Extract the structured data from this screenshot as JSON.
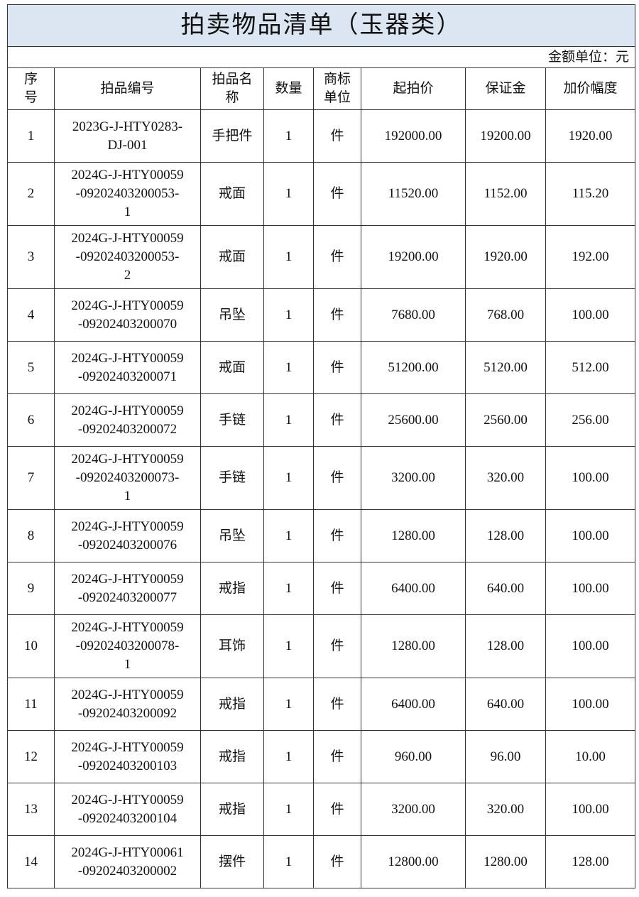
{
  "title": "拍卖物品清单（玉器类）",
  "unit_note": "金额单位：元",
  "columns": [
    "序\n号",
    "拍品编号",
    "拍品名\n称",
    "数量",
    "商标\n单位",
    "起拍价",
    "保证金",
    "加价幅度"
  ],
  "rows": [
    [
      "1",
      "2023G-J-HTY0283-\nDJ-001",
      "手把件",
      "1",
      "件",
      "192000.00",
      "19200.00",
      "1920.00"
    ],
    [
      "2",
      "2024G-J-HTY00059\n-09202403200053-\n1",
      "戒面",
      "1",
      "件",
      "11520.00",
      "1152.00",
      "115.20"
    ],
    [
      "3",
      "2024G-J-HTY00059\n-09202403200053-\n2",
      "戒面",
      "1",
      "件",
      "19200.00",
      "1920.00",
      "192.00"
    ],
    [
      "4",
      "2024G-J-HTY00059\n-09202403200070",
      "吊坠",
      "1",
      "件",
      "7680.00",
      "768.00",
      "100.00"
    ],
    [
      "5",
      "2024G-J-HTY00059\n-09202403200071",
      "戒面",
      "1",
      "件",
      "51200.00",
      "5120.00",
      "512.00"
    ],
    [
      "6",
      "2024G-J-HTY00059\n-09202403200072",
      "手链",
      "1",
      "件",
      "25600.00",
      "2560.00",
      "256.00"
    ],
    [
      "7",
      "2024G-J-HTY00059\n-09202403200073-\n1",
      "手链",
      "1",
      "件",
      "3200.00",
      "320.00",
      "100.00"
    ],
    [
      "8",
      "2024G-J-HTY00059\n-09202403200076",
      "吊坠",
      "1",
      "件",
      "1280.00",
      "128.00",
      "100.00"
    ],
    [
      "9",
      "2024G-J-HTY00059\n-09202403200077",
      "戒指",
      "1",
      "件",
      "6400.00",
      "640.00",
      "100.00"
    ],
    [
      "10",
      "2024G-J-HTY00059\n-09202403200078-\n1",
      "耳饰",
      "1",
      "件",
      "1280.00",
      "128.00",
      "100.00"
    ],
    [
      "11",
      "2024G-J-HTY00059\n-09202403200092",
      "戒指",
      "1",
      "件",
      "6400.00",
      "640.00",
      "100.00"
    ],
    [
      "12",
      "2024G-J-HTY00059\n-09202403200103",
      "戒指",
      "1",
      "件",
      "960.00",
      "96.00",
      "10.00"
    ],
    [
      "13",
      "2024G-J-HTY00059\n-09202403200104",
      "戒指",
      "1",
      "件",
      "3200.00",
      "320.00",
      "100.00"
    ],
    [
      "14",
      "2024G-J-HTY00061\n-09202403200002",
      "摆件",
      "1",
      "件",
      "12800.00",
      "1280.00",
      "128.00"
    ]
  ]
}
